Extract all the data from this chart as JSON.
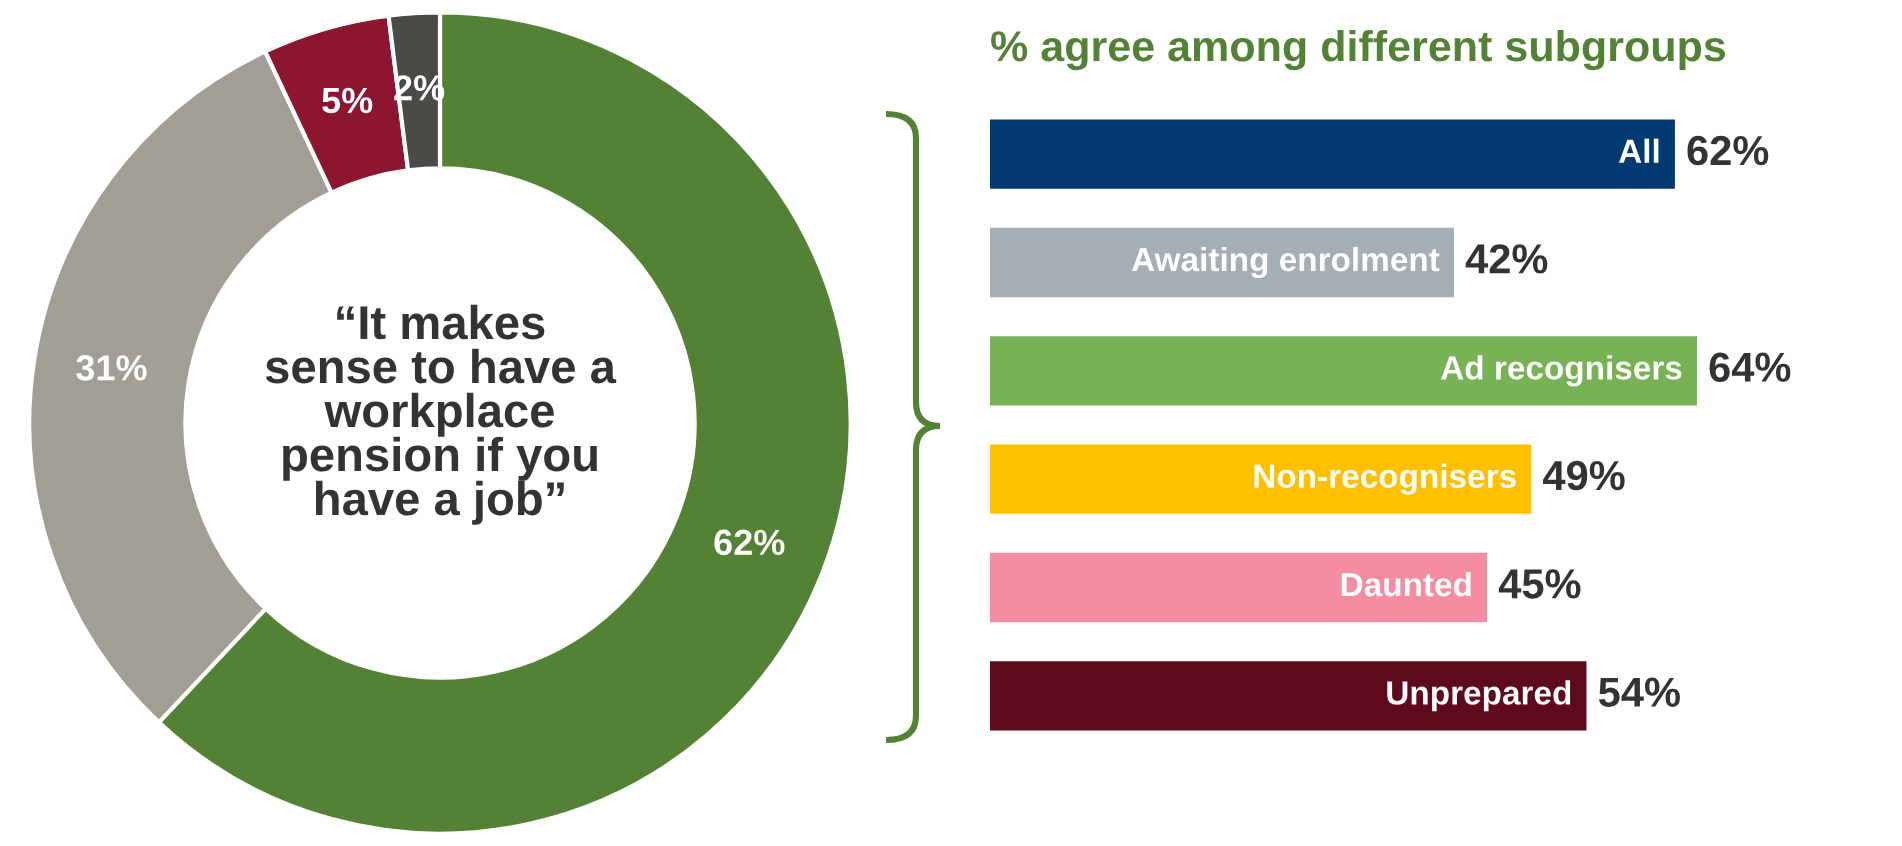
{
  "chart_data": [
    {
      "type": "donut",
      "categories": [
        null,
        null,
        null,
        null
      ],
      "values": [
        62,
        31,
        5,
        2
      ],
      "colors": [
        "#548235",
        "#a19e95",
        "#8c1530",
        "#4a4a46"
      ],
      "value_labels": [
        "62%",
        "31%",
        "5%",
        "2%"
      ],
      "annotations": [
        "“It makes\nsense to have a\nworkplace\npension if you\nhave a job”"
      ]
    },
    {
      "type": "bar",
      "orientation": "horizontal",
      "title": "% agree among different subgroups",
      "categories": [
        "All",
        "Awaiting enrolment",
        "Ad recognisers",
        "Non-recognisers",
        "Daunted",
        "Unprepared"
      ],
      "values": [
        62,
        42,
        64,
        49,
        45,
        54
      ],
      "colors": [
        "#003a70",
        "#a5adb5",
        "#77b255",
        "#ffc000",
        "#f48ca2",
        "#5e0a1c"
      ],
      "value_labels": [
        "62%",
        "42%",
        "64%",
        "49%",
        "45%",
        "54%"
      ]
    }
  ]
}
